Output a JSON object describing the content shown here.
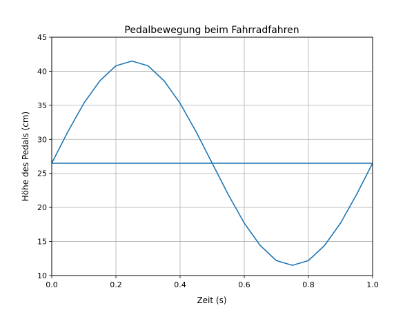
{
  "chart_data": {
    "type": "line",
    "title": "Pedalbewegung beim Fahrradfahren",
    "xlabel": "Zeit (s)",
    "ylabel": "Höhe des Pedals (cm)",
    "xlim": [
      0.0,
      1.0
    ],
    "ylim": [
      10,
      45
    ],
    "xticks": [
      "0.0",
      "0.2",
      "0.4",
      "0.6",
      "0.8",
      "1.0"
    ],
    "yticks": [
      "10",
      "15",
      "20",
      "25",
      "30",
      "35",
      "40",
      "45"
    ],
    "grid": true,
    "line_color": "#1f77b4",
    "series": [
      {
        "x": [
          0.0,
          0.05,
          0.1,
          0.15,
          0.2,
          0.25,
          0.3,
          0.35,
          0.4,
          0.45,
          0.5,
          0.55,
          0.6,
          0.65,
          0.7,
          0.75,
          0.8,
          0.85,
          0.9,
          0.95,
          1.0
        ],
        "y": [
          26.5,
          31.1,
          35.3,
          38.6,
          40.8,
          41.5,
          40.8,
          38.6,
          35.3,
          31.1,
          26.5,
          21.9,
          17.7,
          14.4,
          12.2,
          11.5,
          12.2,
          14.4,
          17.7,
          21.9,
          26.5
        ]
      },
      {
        "x": [
          0.0,
          1.0
        ],
        "y": [
          26.5,
          26.5
        ]
      }
    ]
  }
}
